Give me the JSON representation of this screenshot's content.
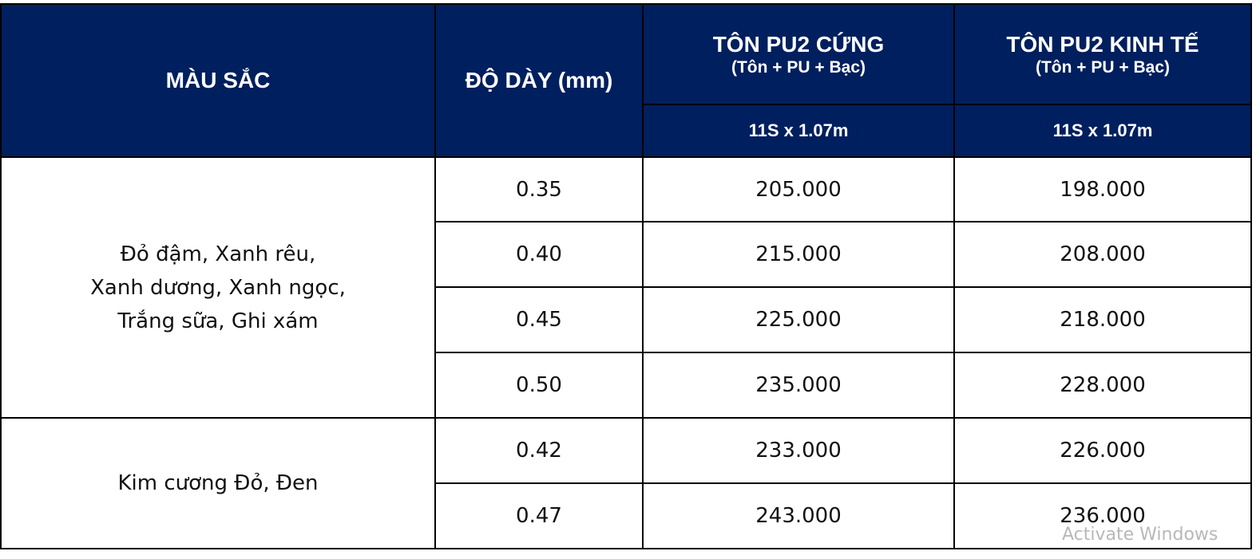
{
  "table": {
    "headers": {
      "color": "MÀU SẮC",
      "thickness": "ĐỘ DÀY (mm)",
      "col1_title": "TÔN PU2 CỨNG",
      "col1_sub": "(Tôn + PU + Bạc)",
      "col1_spec": "11S x 1.07m",
      "col2_title": "TÔN PU2 KINH TẾ",
      "col2_sub": "(Tôn + PU + Bạc)",
      "col2_spec": "11S x 1.07m"
    },
    "groups": [
      {
        "color_lines": [
          "Đỏ đậm, Xanh rêu,",
          "Xanh dương, Xanh ngọc,",
          "Trắng sữa, Ghi xám"
        ],
        "rows": [
          {
            "thickness": "0.35",
            "price1": "205.000",
            "price2": "198.000"
          },
          {
            "thickness": "0.40",
            "price1": "215.000",
            "price2": "208.000"
          },
          {
            "thickness": "0.45",
            "price1": "225.000",
            "price2": "218.000"
          },
          {
            "thickness": "0.50",
            "price1": "235.000",
            "price2": "228.000"
          }
        ]
      },
      {
        "color_lines": [
          "Kim cương Đỏ, Đen"
        ],
        "rows": [
          {
            "thickness": "0.42",
            "price1": "233.000",
            "price2": "226.000"
          },
          {
            "thickness": "0.47",
            "price1": "243.000",
            "price2": "236.000"
          }
        ]
      }
    ]
  },
  "watermark": "Activate Windows"
}
